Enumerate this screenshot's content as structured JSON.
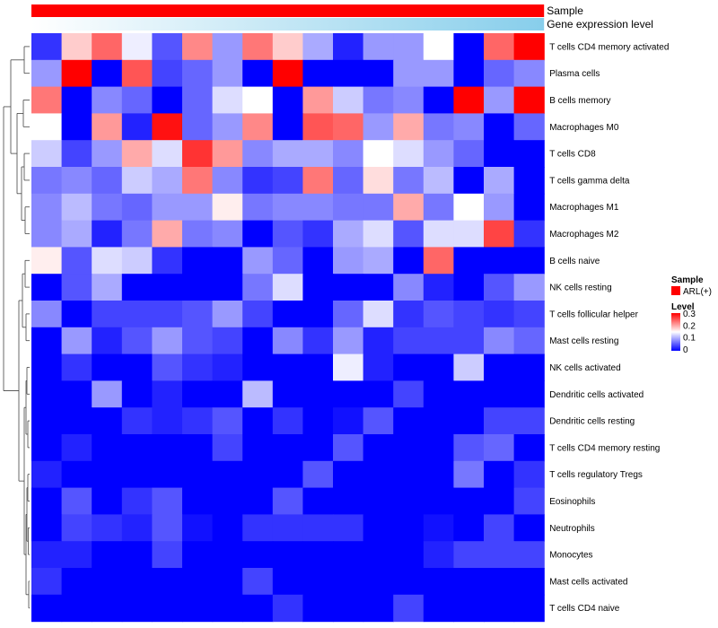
{
  "chart_data": {
    "type": "heatmap",
    "annotations": [
      {
        "label": "Sample"
      },
      {
        "label": "Gene expression level",
        "gradient": [
          "#ffffff",
          "#87ceeb"
        ]
      }
    ],
    "rows": [
      "T cells CD4 memory activated",
      "Plasma cells",
      "B cells memory",
      "Macrophages M0",
      "T cells CD8",
      "T cells gamma delta",
      "Macrophages M1",
      "Macrophages M2",
      "B cells naive",
      "NK cells resting",
      "T cells follicular helper",
      "Mast cells resting",
      "NK cells activated",
      "Dendritic cells activated",
      "Dendritic cells resting",
      "T cells CD4 memory resting",
      "T cells regulatory  Tregs",
      "Eosinophils",
      "Neutrophils",
      "Monocytes",
      "Mast cells activated",
      "T cells CD4 naive"
    ],
    "n_columns": 17,
    "values": [
      [
        0.03,
        0.18,
        0.24,
        0.14,
        0.05,
        0.22,
        0.09,
        0.23,
        0.18,
        0.1,
        0.02,
        0.09,
        0.09,
        0.15,
        0.0,
        0.24,
        0.3
      ],
      [
        0.09,
        0.3,
        0.0,
        0.25,
        0.04,
        0.06,
        0.09,
        0.0,
        0.3,
        0.0,
        0.0,
        0.0,
        0.09,
        0.09,
        0.0,
        0.06,
        0.08
      ],
      [
        0.23,
        0.0,
        0.08,
        0.06,
        0.0,
        0.06,
        0.13,
        0.15,
        0.0,
        0.21,
        0.12,
        0.07,
        0.08,
        0.0,
        0.3,
        0.09,
        0.3
      ],
      [
        0.15,
        0.0,
        0.21,
        0.02,
        0.29,
        0.06,
        0.09,
        0.22,
        0.0,
        0.25,
        0.24,
        0.09,
        0.2,
        0.07,
        0.08,
        0.0,
        0.06
      ],
      [
        0.12,
        0.04,
        0.09,
        0.2,
        0.13,
        0.27,
        0.21,
        0.08,
        0.1,
        0.1,
        0.08,
        0.15,
        0.13,
        0.09,
        0.06,
        0.0,
        0.0
      ],
      [
        0.07,
        0.08,
        0.06,
        0.12,
        0.1,
        0.23,
        0.08,
        0.03,
        0.04,
        0.23,
        0.06,
        0.17,
        0.07,
        0.11,
        0.0,
        0.1,
        0.0
      ],
      [
        0.08,
        0.11,
        0.07,
        0.06,
        0.09,
        0.09,
        0.16,
        0.07,
        0.08,
        0.08,
        0.07,
        0.07,
        0.2,
        0.07,
        0.15,
        0.09,
        0.0
      ],
      [
        0.08,
        0.1,
        0.02,
        0.07,
        0.2,
        0.07,
        0.08,
        0.0,
        0.05,
        0.03,
        0.1,
        0.13,
        0.05,
        0.13,
        0.13,
        0.26,
        0.03
      ],
      [
        0.16,
        0.05,
        0.13,
        0.12,
        0.03,
        0.0,
        0.0,
        0.09,
        0.06,
        0.0,
        0.09,
        0.1,
        0.0,
        0.24,
        0.0,
        0.0,
        0.0
      ],
      [
        0.0,
        0.05,
        0.1,
        0.0,
        0.0,
        0.0,
        0.0,
        0.07,
        0.13,
        0.0,
        0.0,
        0.0,
        0.08,
        0.02,
        0.0,
        0.05,
        0.09
      ],
      [
        0.08,
        0.0,
        0.04,
        0.04,
        0.04,
        0.05,
        0.09,
        0.04,
        0.0,
        0.0,
        0.06,
        0.13,
        0.03,
        0.05,
        0.04,
        0.03,
        0.04
      ],
      [
        0.0,
        0.09,
        0.02,
        0.05,
        0.09,
        0.05,
        0.04,
        0.0,
        0.08,
        0.03,
        0.09,
        0.02,
        0.04,
        0.04,
        0.04,
        0.08,
        0.06
      ],
      [
        0.0,
        0.03,
        0.0,
        0.0,
        0.05,
        0.03,
        0.02,
        0.0,
        0.0,
        0.0,
        0.14,
        0.02,
        0.0,
        0.0,
        0.12,
        0.0,
        0.0
      ],
      [
        0.0,
        0.0,
        0.09,
        0.0,
        0.02,
        0.0,
        0.0,
        0.11,
        0.0,
        0.0,
        0.0,
        0.0,
        0.04,
        0.0,
        0.0,
        0.0,
        0.0
      ],
      [
        0.0,
        0.0,
        0.0,
        0.03,
        0.02,
        0.03,
        0.05,
        0.0,
        0.03,
        0.0,
        0.01,
        0.05,
        0.0,
        0.0,
        0.0,
        0.04,
        0.04
      ],
      [
        0.0,
        0.02,
        0.0,
        0.0,
        0.0,
        0.0,
        0.04,
        0.0,
        0.0,
        0.0,
        0.05,
        0.0,
        0.0,
        0.0,
        0.05,
        0.06,
        0.0
      ],
      [
        0.02,
        0.0,
        0.0,
        0.0,
        0.0,
        0.0,
        0.0,
        0.0,
        0.0,
        0.05,
        0.0,
        0.0,
        0.0,
        0.0,
        0.07,
        0.0,
        0.03
      ],
      [
        0.0,
        0.05,
        0.0,
        0.03,
        0.05,
        0.0,
        0.0,
        0.0,
        0.05,
        0.0,
        0.0,
        0.0,
        0.0,
        0.0,
        0.0,
        0.0,
        0.04
      ],
      [
        0.0,
        0.04,
        0.03,
        0.02,
        0.05,
        0.01,
        0.0,
        0.03,
        0.03,
        0.03,
        0.03,
        0.0,
        0.0,
        0.01,
        0.0,
        0.04,
        0.0
      ],
      [
        0.02,
        0.02,
        0.0,
        0.0,
        0.04,
        0.0,
        0.0,
        0.0,
        0.0,
        0.0,
        0.0,
        0.0,
        0.0,
        0.02,
        0.04,
        0.04,
        0.04
      ],
      [
        0.03,
        0.0,
        0.0,
        0.0,
        0.0,
        0.0,
        0.0,
        0.04,
        0.0,
        0.0,
        0.0,
        0.0,
        0.0,
        0.0,
        0.0,
        0.0,
        0.0
      ],
      [
        0.0,
        0.0,
        0.0,
        0.0,
        0.0,
        0.0,
        0.0,
        0.0,
        0.03,
        0.0,
        0.0,
        0.0,
        0.04,
        0.0,
        0.0,
        0.0,
        0.0
      ]
    ],
    "color_scale": {
      "low": "#0000ff",
      "mid": "#ffffff",
      "high": "#ff0000",
      "min": 0,
      "mid_value": 0.15,
      "max": 0.3
    },
    "legend": {
      "sample_title": "Sample",
      "sample_entry": "ARL(+)",
      "sample_color": "#ff0000",
      "level_title": "Level",
      "level_ticks": [
        "0.3",
        "0.2",
        "0.1",
        "0"
      ]
    }
  }
}
